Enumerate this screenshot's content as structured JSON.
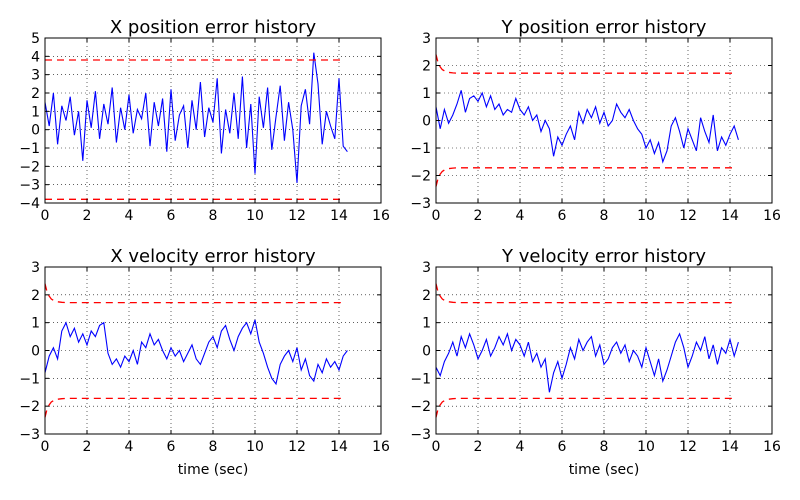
{
  "colors": {
    "error": "#0000ff",
    "bound": "#ff0000"
  },
  "chart_data": [
    {
      "type": "line",
      "title": "X position error history",
      "xlabel": "",
      "xlim": [
        0,
        16
      ],
      "ylim": [
        -4,
        5
      ],
      "xticks": [
        0,
        2,
        4,
        6,
        8,
        10,
        12,
        14,
        16
      ],
      "yticks": [
        -4,
        -3,
        -2,
        -1,
        0,
        1,
        2,
        3,
        4,
        5
      ],
      "grid": true,
      "series": [
        {
          "role": "error",
          "color": "#0000ff",
          "x": [
            0,
            0.2,
            0.4,
            0.6,
            0.8,
            1.0,
            1.2,
            1.4,
            1.6,
            1.8,
            2.0,
            2.2,
            2.4,
            2.6,
            2.8,
            3.0,
            3.2,
            3.4,
            3.6,
            3.8,
            4.0,
            4.2,
            4.4,
            4.6,
            4.8,
            5.0,
            5.2,
            5.4,
            5.6,
            5.8,
            6.0,
            6.2,
            6.4,
            6.6,
            6.8,
            7.0,
            7.2,
            7.4,
            7.6,
            7.8,
            8.0,
            8.2,
            8.4,
            8.6,
            8.8,
            9.0,
            9.2,
            9.4,
            9.6,
            9.8,
            10.0,
            10.2,
            10.4,
            10.6,
            10.8,
            11.0,
            11.2,
            11.4,
            11.6,
            11.8,
            12.0,
            12.2,
            12.4,
            12.6,
            12.8,
            13.0,
            13.2,
            13.4,
            13.6,
            13.8,
            14.0,
            14.2,
            14.4
          ],
          "y": [
            1.5,
            0.2,
            2.0,
            -0.8,
            1.3,
            0.5,
            1.8,
            -0.3,
            1.0,
            -1.7,
            1.6,
            0.1,
            2.1,
            -0.5,
            1.4,
            0.3,
            2.3,
            -0.7,
            1.2,
            0.0,
            1.9,
            -0.2,
            1.1,
            0.6,
            2.0,
            -0.9,
            1.5,
            0.2,
            1.7,
            -1.2,
            2.2,
            -0.6,
            0.8,
            1.3,
            -1.0,
            1.6,
            0.0,
            2.6,
            -0.4,
            1.2,
            0.4,
            2.8,
            -1.3,
            1.1,
            -0.2,
            2.0,
            -0.5,
            2.9,
            -1.0,
            1.4,
            -2.4,
            1.8,
            0.1,
            2.3,
            -1.1,
            0.7,
            2.4,
            -0.6,
            1.5,
            0.0,
            -2.9,
            1.3,
            2.2,
            0.3,
            4.2,
            2.5,
            -0.8,
            1.0,
            0.2,
            -0.5,
            2.8,
            -0.9,
            -1.2
          ]
        },
        {
          "role": "upper bound",
          "color": "#ff0000",
          "x": [
            0,
            14.2
          ],
          "y": [
            3.8,
            3.8
          ]
        },
        {
          "role": "lower bound",
          "color": "#ff0000",
          "x": [
            0,
            14.2
          ],
          "y": [
            -3.8,
            -3.8
          ]
        }
      ]
    },
    {
      "type": "line",
      "title": "Y position error history",
      "xlabel": "",
      "xlim": [
        0,
        16
      ],
      "ylim": [
        -3,
        3
      ],
      "xticks": [
        0,
        2,
        4,
        6,
        8,
        10,
        12,
        14,
        16
      ],
      "yticks": [
        -3,
        -2,
        -1,
        0,
        1,
        2,
        3
      ],
      "grid": true,
      "series": [
        {
          "role": "error",
          "color": "#0000ff",
          "x": [
            0,
            0.2,
            0.4,
            0.6,
            0.8,
            1.0,
            1.2,
            1.4,
            1.6,
            1.8,
            2.0,
            2.2,
            2.4,
            2.6,
            2.8,
            3.0,
            3.2,
            3.4,
            3.6,
            3.8,
            4.0,
            4.2,
            4.4,
            4.6,
            4.8,
            5.0,
            5.2,
            5.4,
            5.6,
            5.8,
            6.0,
            6.2,
            6.4,
            6.6,
            6.8,
            7.0,
            7.2,
            7.4,
            7.6,
            7.8,
            8.0,
            8.2,
            8.4,
            8.6,
            8.8,
            9.0,
            9.2,
            9.4,
            9.6,
            9.8,
            10.0,
            10.2,
            10.4,
            10.6,
            10.8,
            11.0,
            11.2,
            11.4,
            11.6,
            11.8,
            12.0,
            12.2,
            12.4,
            12.6,
            12.8,
            13.0,
            13.2,
            13.4,
            13.6,
            13.8,
            14.0,
            14.2,
            14.4
          ],
          "y": [
            0.5,
            -0.3,
            0.4,
            -0.1,
            0.2,
            0.6,
            1.1,
            0.3,
            0.8,
            0.9,
            0.7,
            1.0,
            0.5,
            0.9,
            0.4,
            0.6,
            0.2,
            0.4,
            0.3,
            0.8,
            0.4,
            0.2,
            0.5,
            0.0,
            0.2,
            -0.4,
            0.0,
            -0.3,
            -1.3,
            -0.6,
            -0.9,
            -0.5,
            -0.2,
            -0.7,
            0.3,
            -0.1,
            0.4,
            0.1,
            0.5,
            -0.1,
            0.3,
            -0.2,
            0.0,
            0.6,
            0.3,
            0.1,
            0.4,
            0.0,
            -0.3,
            -0.5,
            -1.0,
            -0.7,
            -1.2,
            -0.8,
            -1.5,
            -1.1,
            -0.2,
            0.1,
            -0.4,
            -1.0,
            -0.3,
            -0.7,
            -1.1,
            0.1,
            -0.4,
            -0.8,
            0.2,
            -1.1,
            -0.6,
            -0.9,
            -0.5,
            -0.2,
            -0.7
          ]
        },
        {
          "role": "upper bound",
          "color": "#ff0000",
          "x": [
            0,
            0.1,
            0.2,
            0.3,
            0.45,
            0.6,
            0.8,
            1.0,
            1.4,
            2.0,
            14.2
          ],
          "y": [
            2.4,
            2.1,
            1.95,
            1.85,
            1.78,
            1.75,
            1.73,
            1.72,
            1.72,
            1.72,
            1.72
          ]
        },
        {
          "role": "lower bound",
          "color": "#ff0000",
          "x": [
            0,
            0.1,
            0.2,
            0.3,
            0.45,
            0.6,
            0.8,
            1.0,
            1.4,
            2.0,
            14.2
          ],
          "y": [
            -2.4,
            -2.1,
            -1.95,
            -1.85,
            -1.78,
            -1.75,
            -1.73,
            -1.72,
            -1.72,
            -1.72,
            -1.72
          ]
        }
      ]
    },
    {
      "type": "line",
      "title": "X velocity error history",
      "xlabel": "time (sec)",
      "xlim": [
        0,
        16
      ],
      "ylim": [
        -3,
        3
      ],
      "xticks": [
        0,
        2,
        4,
        6,
        8,
        10,
        12,
        14,
        16
      ],
      "yticks": [
        -3,
        -2,
        -1,
        0,
        1,
        2,
        3
      ],
      "grid": true,
      "series": [
        {
          "role": "error",
          "color": "#0000ff",
          "x": [
            0,
            0.2,
            0.4,
            0.6,
            0.8,
            1.0,
            1.2,
            1.4,
            1.6,
            1.8,
            2.0,
            2.2,
            2.4,
            2.6,
            2.8,
            3.0,
            3.2,
            3.4,
            3.6,
            3.8,
            4.0,
            4.2,
            4.4,
            4.6,
            4.8,
            5.0,
            5.2,
            5.4,
            5.6,
            5.8,
            6.0,
            6.2,
            6.4,
            6.6,
            6.8,
            7.0,
            7.2,
            7.4,
            7.6,
            7.8,
            8.0,
            8.2,
            8.4,
            8.6,
            8.8,
            9.0,
            9.2,
            9.4,
            9.6,
            9.8,
            10.0,
            10.2,
            10.4,
            10.6,
            10.8,
            11.0,
            11.2,
            11.4,
            11.6,
            11.8,
            12.0,
            12.2,
            12.4,
            12.6,
            12.8,
            13.0,
            13.2,
            13.4,
            13.6,
            13.8,
            14.0,
            14.2,
            14.4
          ],
          "y": [
            -0.8,
            -0.2,
            0.1,
            -0.3,
            0.7,
            1.0,
            0.5,
            0.8,
            0.3,
            0.6,
            0.2,
            0.7,
            0.5,
            0.9,
            1.0,
            -0.1,
            -0.5,
            -0.3,
            -0.6,
            -0.2,
            -0.4,
            0.0,
            -0.5,
            0.3,
            0.1,
            0.6,
            0.2,
            0.4,
            0.0,
            -0.3,
            0.1,
            -0.2,
            0.0,
            -0.4,
            -0.1,
            0.2,
            -0.3,
            -0.5,
            -0.1,
            0.3,
            0.5,
            0.1,
            0.7,
            0.9,
            0.4,
            0.0,
            0.5,
            0.8,
            1.0,
            0.6,
            1.1,
            0.3,
            -0.1,
            -0.6,
            -1.0,
            -1.2,
            -0.5,
            -0.2,
            0.0,
            -0.4,
            0.1,
            -0.7,
            -0.3,
            -0.9,
            -1.1,
            -0.5,
            -0.8,
            -0.3,
            -0.6,
            -0.4,
            -0.7,
            -0.2,
            0.0
          ]
        },
        {
          "role": "upper bound",
          "color": "#ff0000",
          "x": [
            0,
            0.1,
            0.2,
            0.3,
            0.45,
            0.6,
            0.8,
            1.0,
            1.4,
            2.0,
            14.2
          ],
          "y": [
            2.4,
            2.1,
            1.95,
            1.85,
            1.78,
            1.75,
            1.73,
            1.72,
            1.72,
            1.72,
            1.72
          ]
        },
        {
          "role": "lower bound",
          "color": "#ff0000",
          "x": [
            0,
            0.1,
            0.2,
            0.3,
            0.45,
            0.6,
            0.8,
            1.0,
            1.4,
            2.0,
            14.2
          ],
          "y": [
            -2.4,
            -2.1,
            -1.95,
            -1.85,
            -1.78,
            -1.75,
            -1.73,
            -1.72,
            -1.72,
            -1.72,
            -1.72
          ]
        }
      ]
    },
    {
      "type": "line",
      "title": "Y velocity error history",
      "xlabel": "time (sec)",
      "xlim": [
        0,
        16
      ],
      "ylim": [
        -3,
        3
      ],
      "xticks": [
        0,
        2,
        4,
        6,
        8,
        10,
        12,
        14,
        16
      ],
      "yticks": [
        -3,
        -2,
        -1,
        0,
        1,
        2,
        3
      ],
      "grid": true,
      "series": [
        {
          "role": "error",
          "color": "#0000ff",
          "x": [
            0,
            0.2,
            0.4,
            0.6,
            0.8,
            1.0,
            1.2,
            1.4,
            1.6,
            1.8,
            2.0,
            2.2,
            2.4,
            2.6,
            2.8,
            3.0,
            3.2,
            3.4,
            3.6,
            3.8,
            4.0,
            4.2,
            4.4,
            4.6,
            4.8,
            5.0,
            5.2,
            5.4,
            5.6,
            5.8,
            6.0,
            6.2,
            6.4,
            6.6,
            6.8,
            7.0,
            7.2,
            7.4,
            7.6,
            7.8,
            8.0,
            8.2,
            8.4,
            8.6,
            8.8,
            9.0,
            9.2,
            9.4,
            9.6,
            9.8,
            10.0,
            10.2,
            10.4,
            10.6,
            10.8,
            11.0,
            11.2,
            11.4,
            11.6,
            11.8,
            12.0,
            12.2,
            12.4,
            12.6,
            12.8,
            13.0,
            13.2,
            13.4,
            13.6,
            13.8,
            14.0,
            14.2,
            14.4
          ],
          "y": [
            -0.6,
            -0.9,
            -0.4,
            -0.1,
            0.3,
            -0.2,
            0.5,
            0.1,
            0.6,
            0.2,
            -0.3,
            0.0,
            0.4,
            -0.2,
            0.1,
            0.5,
            0.2,
            0.6,
            0.0,
            0.4,
            0.2,
            -0.2,
            0.3,
            -0.4,
            -0.1,
            -0.6,
            -0.3,
            -1.5,
            -0.8,
            -0.4,
            -1.0,
            -0.5,
            0.1,
            -0.3,
            0.4,
            0.0,
            0.3,
            0.5,
            -0.2,
            0.2,
            -0.5,
            -0.3,
            0.1,
            0.3,
            -0.1,
            0.2,
            -0.4,
            0.0,
            -0.2,
            -0.6,
            0.1,
            -0.4,
            -0.9,
            -0.3,
            -1.1,
            -0.7,
            -0.2,
            0.3,
            0.6,
            0.1,
            -0.6,
            -0.2,
            0.3,
            0.0,
            0.5,
            -0.3,
            0.2,
            -0.5,
            0.1,
            -0.1,
            0.4,
            -0.2,
            0.3
          ]
        },
        {
          "role": "upper bound",
          "color": "#ff0000",
          "x": [
            0,
            0.1,
            0.2,
            0.3,
            0.45,
            0.6,
            0.8,
            1.0,
            1.4,
            2.0,
            14.2
          ],
          "y": [
            2.4,
            2.1,
            1.95,
            1.85,
            1.78,
            1.75,
            1.73,
            1.72,
            1.72,
            1.72,
            1.72
          ]
        },
        {
          "role": "lower bound",
          "color": "#ff0000",
          "x": [
            0,
            0.1,
            0.2,
            0.3,
            0.45,
            0.6,
            0.8,
            1.0,
            1.4,
            2.0,
            14.2
          ],
          "y": [
            -2.4,
            -2.1,
            -1.95,
            -1.85,
            -1.78,
            -1.75,
            -1.73,
            -1.72,
            -1.72,
            -1.72,
            -1.72
          ]
        }
      ]
    }
  ]
}
